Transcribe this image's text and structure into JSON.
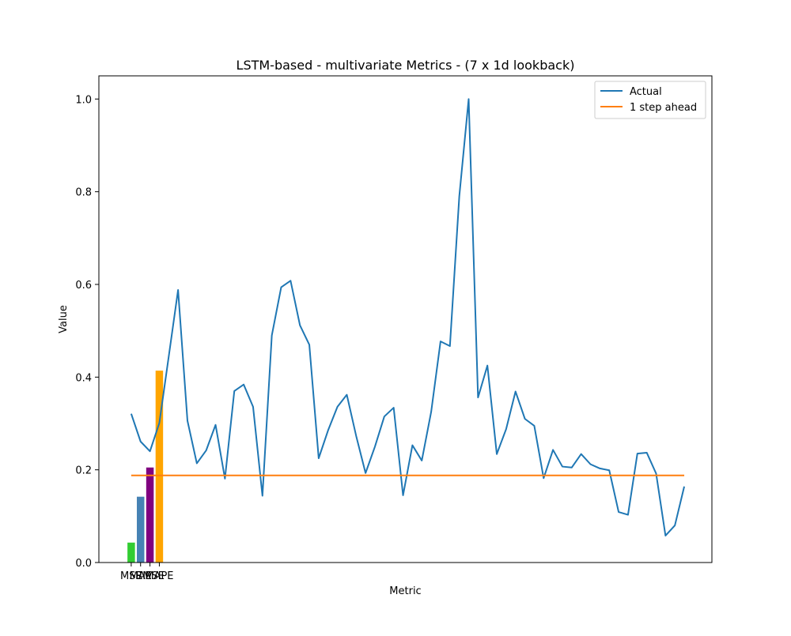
{
  "chart_data": {
    "type": "bar+line",
    "title": "LSTM-based - multivariate Metrics - (7 x 1d lookback)",
    "xlabel": "Metric",
    "ylabel": "Value",
    "ylim": [
      0.0,
      1.05
    ],
    "yticks": [
      "0.0",
      "0.2",
      "0.4",
      "0.6",
      "0.8",
      "1.0"
    ],
    "grid": false,
    "legend_placement": "top-right",
    "bars": {
      "categories": [
        "MSE",
        "MAE",
        "RMSE",
        "MAPE"
      ],
      "values": [
        0.043,
        0.142,
        0.205,
        0.414
      ],
      "colors": [
        "#32cd32",
        "#4682b4",
        "#800080",
        "#ffa500"
      ]
    },
    "series": [
      {
        "name": "Actual",
        "color": "#1f77b4",
        "values": [
          0.321,
          0.261,
          0.24,
          0.301,
          0.444,
          0.588,
          0.306,
          0.214,
          0.242,
          0.297,
          0.181,
          0.37,
          0.384,
          0.336,
          0.144,
          0.49,
          0.594,
          0.608,
          0.512,
          0.47,
          0.225,
          0.285,
          0.336,
          0.362,
          0.273,
          0.193,
          0.25,
          0.315,
          0.334,
          0.145,
          0.253,
          0.22,
          0.325,
          0.477,
          0.467,
          0.79,
          1.0,
          0.356,
          0.425,
          0.234,
          0.288,
          0.369,
          0.31,
          0.295,
          0.182,
          0.243,
          0.207,
          0.205,
          0.234,
          0.212,
          0.203,
          0.199,
          0.109,
          0.103,
          0.235,
          0.237,
          0.192,
          0.058,
          0.08,
          0.164
        ]
      },
      {
        "name": "1 step ahead",
        "color": "#ff7f0e",
        "values": [
          0.188,
          0.188,
          0.188,
          0.188,
          0.188,
          0.188,
          0.188,
          0.188,
          0.188,
          0.188,
          0.188,
          0.188,
          0.188,
          0.188,
          0.188,
          0.188,
          0.188,
          0.188,
          0.188,
          0.188,
          0.188,
          0.188,
          0.188,
          0.188,
          0.188,
          0.188,
          0.188,
          0.188,
          0.188,
          0.188,
          0.188,
          0.188,
          0.188,
          0.188,
          0.188,
          0.188,
          0.188,
          0.188,
          0.188,
          0.188,
          0.188,
          0.188,
          0.188,
          0.188,
          0.188,
          0.188,
          0.188,
          0.188,
          0.188,
          0.188,
          0.188,
          0.188,
          0.188,
          0.188,
          0.188,
          0.188,
          0.188,
          0.188,
          0.188,
          0.188
        ]
      }
    ]
  }
}
